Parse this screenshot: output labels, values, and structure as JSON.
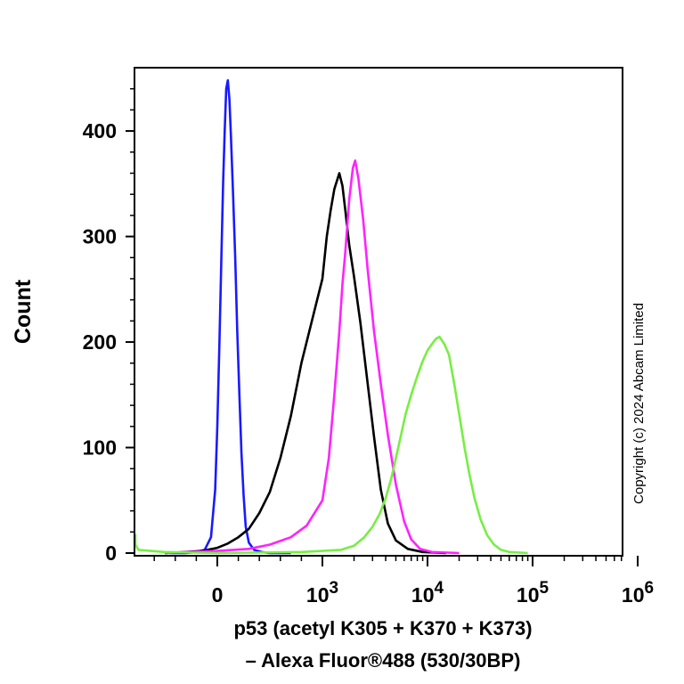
{
  "chart_data": {
    "type": "line",
    "xlabel": [
      "p53 (acetyl K305 + K370 + K373)",
      "– Alexa Fluor®488 (530/30BP)"
    ],
    "ylabel": "Count",
    "ylim": [
      0,
      460
    ],
    "y_ticks": [
      0,
      100,
      200,
      300,
      400
    ],
    "x_scale": "biexponential",
    "x_tick_labels": [
      {
        "base": "0",
        "exp": ""
      },
      {
        "base": "10",
        "exp": "3"
      },
      {
        "base": "10",
        "exp": "4"
      },
      {
        "base": "10",
        "exp": "5"
      },
      {
        "base": "10",
        "exp": "6"
      }
    ],
    "annotation": "Copyright (c) 2024 Abcam Limited",
    "series": [
      {
        "color": "#1a1aff",
        "points": [
          [
            -450,
            0
          ],
          [
            -300,
            0
          ],
          [
            -200,
            1
          ],
          [
            -120,
            3
          ],
          [
            -60,
            15
          ],
          [
            -20,
            60
          ],
          [
            0,
            120
          ],
          [
            20,
            200
          ],
          [
            40,
            285
          ],
          [
            55,
            350
          ],
          [
            70,
            400
          ],
          [
            85,
            440
          ],
          [
            100,
            448
          ],
          [
            115,
            430
          ],
          [
            130,
            395
          ],
          [
            150,
            340
          ],
          [
            170,
            280
          ],
          [
            190,
            210
          ],
          [
            210,
            150
          ],
          [
            230,
            95
          ],
          [
            250,
            55
          ],
          [
            270,
            25
          ],
          [
            300,
            10
          ],
          [
            350,
            3
          ],
          [
            420,
            1
          ],
          [
            500,
            0
          ],
          [
            700,
            0
          ]
        ]
      },
      {
        "color": "#000000",
        "points": [
          [
            -500,
            0
          ],
          [
            -300,
            1
          ],
          [
            -150,
            2
          ],
          [
            0,
            5
          ],
          [
            100,
            9
          ],
          [
            200,
            15
          ],
          [
            300,
            23
          ],
          [
            400,
            38
          ],
          [
            500,
            58
          ],
          [
            600,
            90
          ],
          [
            700,
            130
          ],
          [
            800,
            180
          ],
          [
            900,
            220
          ],
          [
            1000,
            260
          ],
          [
            1100,
            300
          ],
          [
            1200,
            325
          ],
          [
            1300,
            345
          ],
          [
            1450,
            360
          ],
          [
            1550,
            348
          ],
          [
            1650,
            325
          ],
          [
            1800,
            292
          ],
          [
            2000,
            262
          ],
          [
            2300,
            218
          ],
          [
            2700,
            160
          ],
          [
            3100,
            110
          ],
          [
            3600,
            60
          ],
          [
            4200,
            28
          ],
          [
            5000,
            12
          ],
          [
            6500,
            4
          ],
          [
            9000,
            1
          ],
          [
            15000,
            0
          ]
        ]
      },
      {
        "color": "#ff22ff",
        "points": [
          [
            -500,
            0
          ],
          [
            0,
            2
          ],
          [
            300,
            4
          ],
          [
            500,
            8
          ],
          [
            700,
            15
          ],
          [
            850,
            26
          ],
          [
            1000,
            50
          ],
          [
            1150,
            90
          ],
          [
            1300,
            150
          ],
          [
            1450,
            210
          ],
          [
            1550,
            255
          ],
          [
            1650,
            285
          ],
          [
            1800,
            335
          ],
          [
            1950,
            365
          ],
          [
            2050,
            372
          ],
          [
            2200,
            355
          ],
          [
            2450,
            315
          ],
          [
            2700,
            268
          ],
          [
            3100,
            210
          ],
          [
            3600,
            160
          ],
          [
            4200,
            112
          ],
          [
            5000,
            65
          ],
          [
            6000,
            30
          ],
          [
            7000,
            13
          ],
          [
            8500,
            4
          ],
          [
            11000,
            1
          ],
          [
            20000,
            0
          ]
        ]
      },
      {
        "color": "#77ee44",
        "points": [
          [
            -900,
            18
          ],
          [
            -850,
            8
          ],
          [
            -750,
            3
          ],
          [
            -500,
            1
          ],
          [
            0,
            0
          ],
          [
            800,
            1
          ],
          [
            1500,
            3
          ],
          [
            2000,
            7
          ],
          [
            2500,
            15
          ],
          [
            3000,
            25
          ],
          [
            3500,
            37
          ],
          [
            4000,
            52
          ],
          [
            4500,
            70
          ],
          [
            5000,
            90
          ],
          [
            5600,
            112
          ],
          [
            6200,
            132
          ],
          [
            7000,
            150
          ],
          [
            8000,
            168
          ],
          [
            9000,
            182
          ],
          [
            10000,
            192
          ],
          [
            11000,
            198
          ],
          [
            12000,
            203
          ],
          [
            13000,
            205
          ],
          [
            14500,
            198
          ],
          [
            16000,
            188
          ],
          [
            18000,
            160
          ],
          [
            20000,
            132
          ],
          [
            22500,
            100
          ],
          [
            25000,
            75
          ],
          [
            28000,
            52
          ],
          [
            32000,
            32
          ],
          [
            37000,
            17
          ],
          [
            43000,
            8
          ],
          [
            50000,
            3
          ],
          [
            60000,
            1
          ],
          [
            90000,
            0
          ]
        ]
      }
    ]
  }
}
